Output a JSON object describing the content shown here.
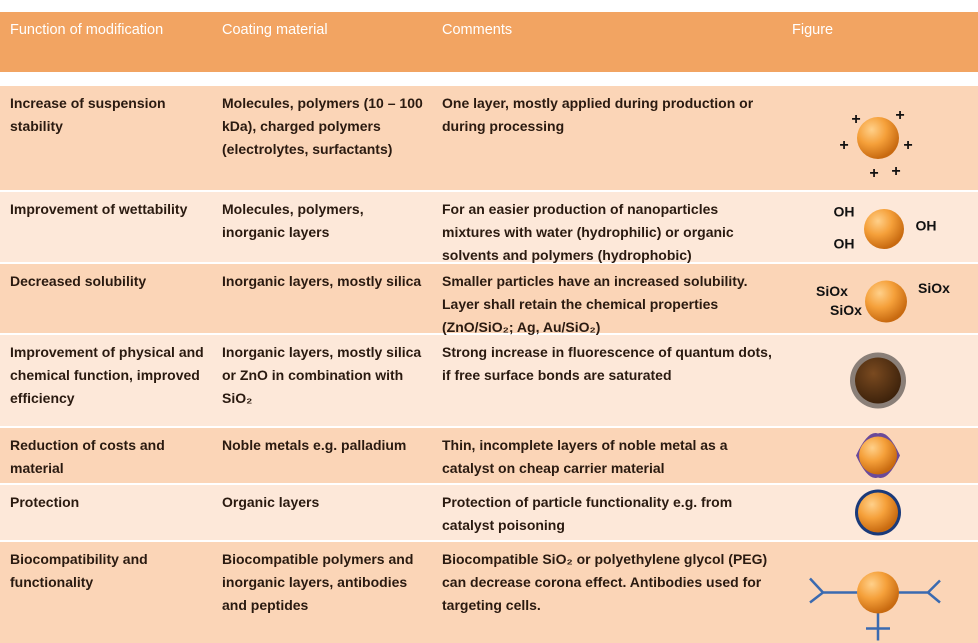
{
  "table": {
    "header": [
      "Function of modification",
      "Coating material",
      "Comments",
      "Figure"
    ],
    "rows": [
      {
        "cells": [
          "Increase of suspension stability",
          "Molecules, polymers (10 – 100 kDa), charged polymers (electrolytes, surfactants)",
          "One layer, mostly applied during production or during processing"
        ],
        "figure_labels": [
          "+",
          "+",
          "+",
          "+",
          "+",
          "+"
        ]
      },
      {
        "cells": [
          "Improvement of wettability",
          "Molecules, polymers, inorganic layers",
          "For an easier production of nanoparticles mixtures with water (hydrophilic) or organic solvents and polymers (hydrophobic)"
        ],
        "figure_labels": [
          "OH",
          "OH",
          "OH"
        ]
      },
      {
        "cells": [
          "Decreased solubility",
          "Inorganic layers, mostly silica",
          "Smaller particles have an increased solubility. Layer shall retain the chemical properties (ZnO/SiO₂; Ag, Au/SiO₂)"
        ],
        "figure_labels": [
          "SiOx",
          "SiOx",
          "SiOx"
        ]
      },
      {
        "cells": [
          "Improvement of physical and chemical function, improved efficiency",
          "Inorganic layers, mostly silica or ZnO in combination with SiO₂",
          "Strong increase in fluorescence of quantum dots, if free surface bonds are saturated"
        ],
        "figure_labels": []
      },
      {
        "cells": [
          "Reduction of costs and material",
          "Noble metals e.g. palladium",
          "Thin, incomplete layers of noble metal as a catalyst on cheap carrier material"
        ],
        "figure_labels": []
      },
      {
        "cells": [
          "Protection",
          "Organic layers",
          "Protection of particle functionality e.g. from catalyst poisoning"
        ],
        "figure_labels": []
      },
      {
        "cells": [
          "Biocompatibility and functionality",
          "Biocompatible polymers and inorganic layers, antibodies and peptides",
          "Biocompatible SiO₂ or polyethylene glycol (PEG) can decrease corona effect. Antibodies used for targeting cells."
        ],
        "figure_labels": []
      }
    ]
  }
}
